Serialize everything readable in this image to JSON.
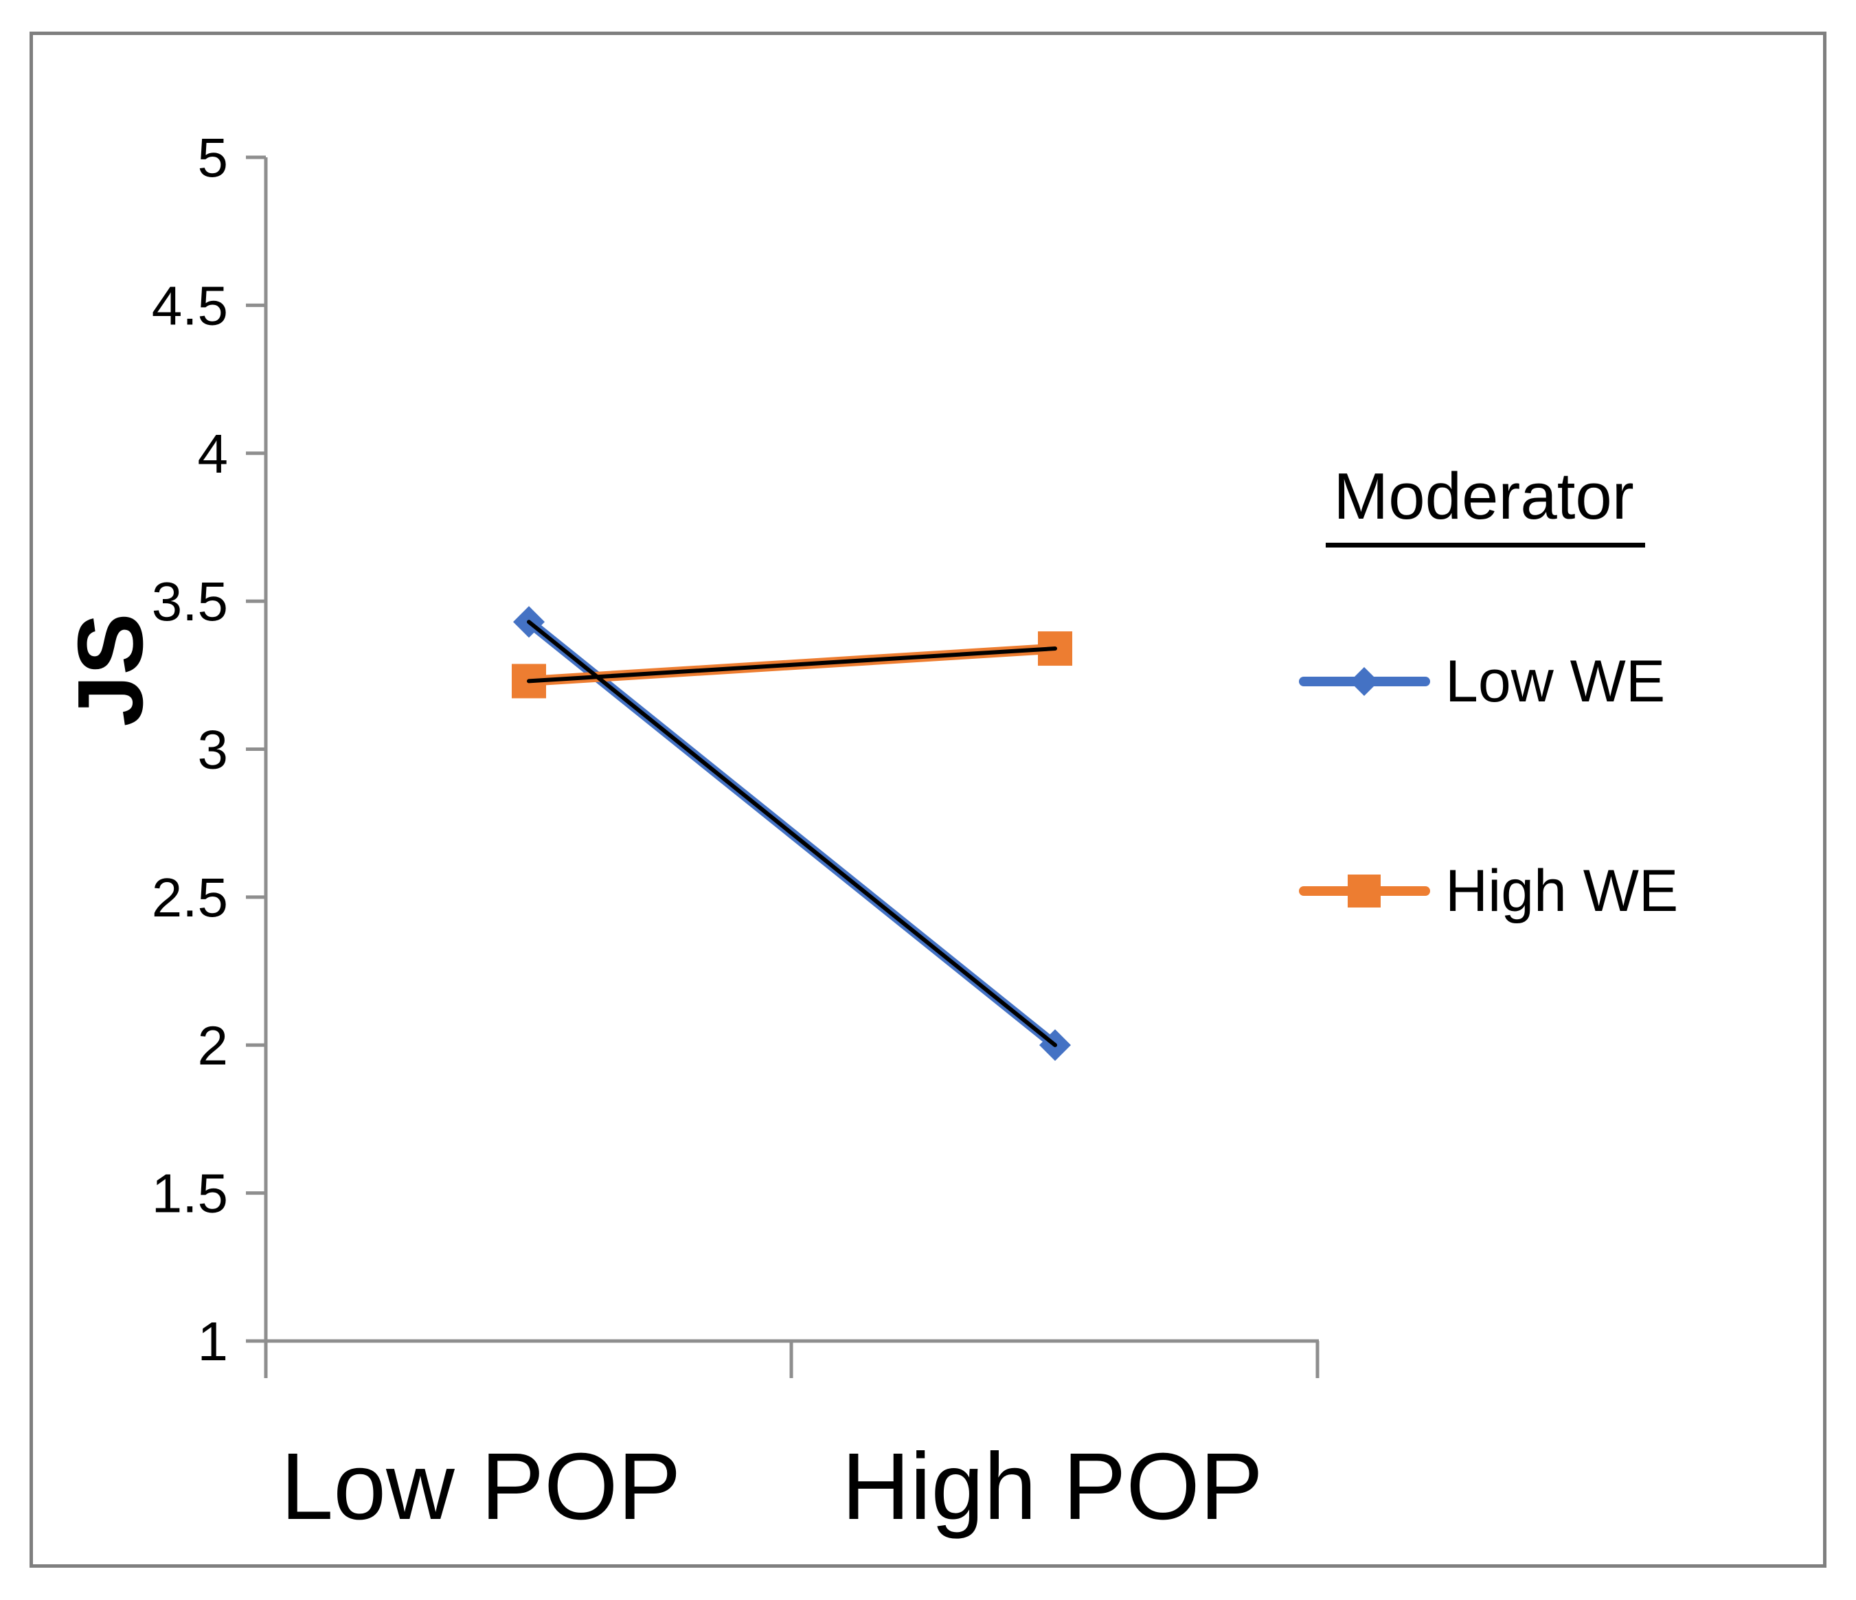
{
  "chart_data": {
    "type": "line",
    "categories": [
      "Low POP",
      "High POP"
    ],
    "series": [
      {
        "name": "Low WE",
        "values": [
          3.43,
          2.0
        ],
        "color": "#4472C4",
        "marker": "diamond"
      },
      {
        "name": "High WE",
        "values": [
          3.23,
          3.34
        ],
        "color": "#ED7D31",
        "marker": "square"
      }
    ],
    "ylabel": "JS",
    "xlabel": "",
    "title": "",
    "ylim": [
      1,
      5
    ],
    "ytick_step": 0.5,
    "ytick_labels": [
      "5",
      "4.5",
      "4",
      "3.5",
      "3",
      "2.5",
      "2",
      "1.5",
      "1"
    ],
    "grid": false,
    "legend": {
      "title": "Moderator",
      "position": "right"
    },
    "axis_color": "#8E8E8E",
    "border_color": "#7F7F7F",
    "line_core_color": "#000000",
    "text_color": "#000000"
  }
}
